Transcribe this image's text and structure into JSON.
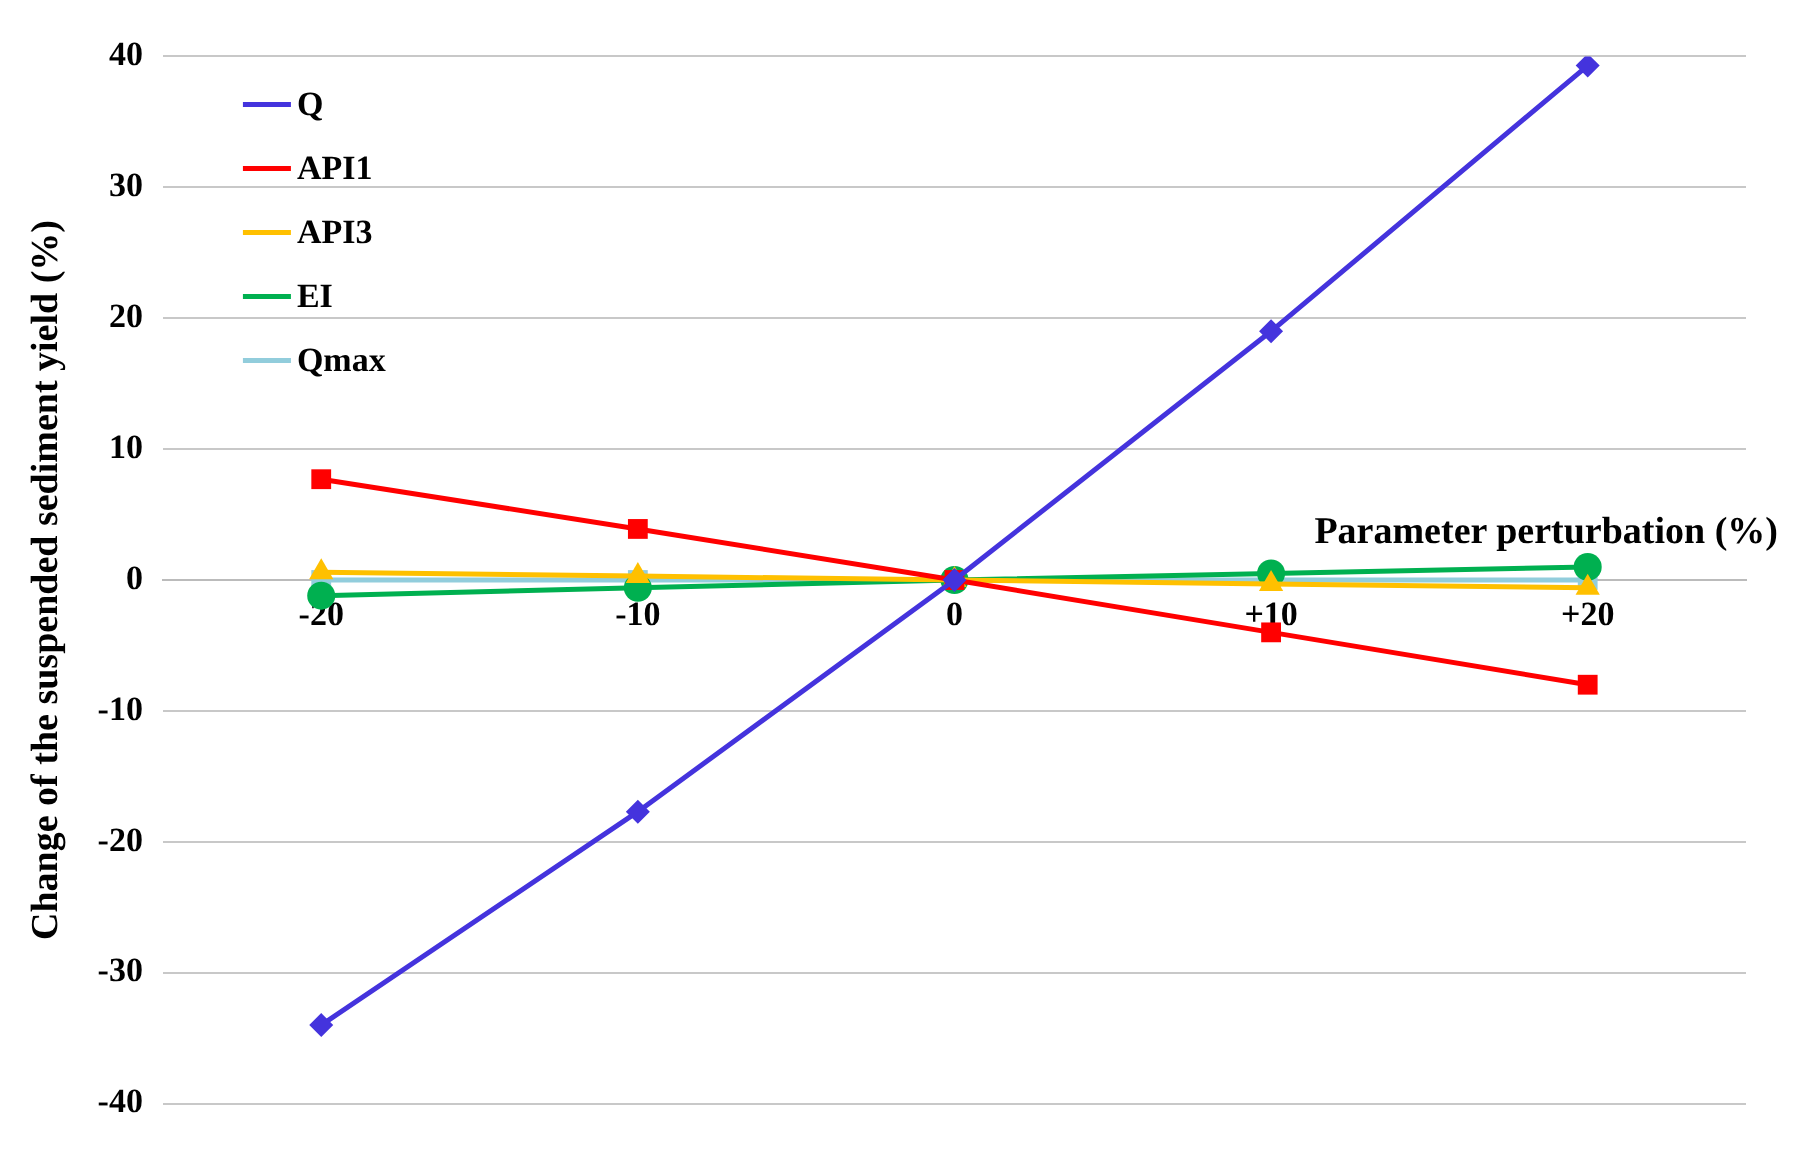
{
  "chart_data": {
    "type": "line",
    "xlabel": "Parameter perturbation (%)",
    "ylabel": "Change of the suspended sediment yield (%)",
    "categories": [
      "-20",
      "-10",
      "0",
      "+10",
      "+20"
    ],
    "series": [
      {
        "name": "Q",
        "color": "#4433dd",
        "marker": "diamond",
        "values": [
          -34,
          -17.7,
          0,
          19,
          39.3
        ]
      },
      {
        "name": "API1",
        "color": "#ff0000",
        "marker": "square",
        "values": [
          7.7,
          3.9,
          0,
          -4,
          -8
        ]
      },
      {
        "name": "API3",
        "color": "#ffc000",
        "marker": "triangle",
        "values": [
          0.6,
          0.3,
          0,
          -0.3,
          -0.6
        ]
      },
      {
        "name": "EI",
        "color": "#00b050",
        "marker": "circle",
        "values": [
          -1.2,
          -0.6,
          0,
          0.5,
          1
        ]
      },
      {
        "name": "Qmax",
        "color": "#92cddc",
        "marker": "square",
        "values": [
          0,
          0,
          0,
          0,
          0
        ]
      }
    ],
    "ylim": [
      -40,
      40
    ],
    "yticks": [
      -40,
      -30,
      -20,
      -10,
      0,
      10,
      20,
      30,
      40
    ],
    "grid": "y",
    "legend": "top left"
  }
}
